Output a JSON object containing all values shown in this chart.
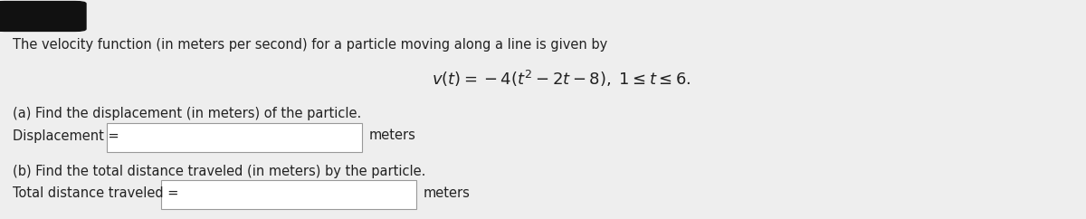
{
  "background_color": "#eeeeee",
  "black_box_color": "#111111",
  "intro_text": "The velocity function (in meters per second) for a particle moving along a line is given by",
  "formula_text": "$v(t) = -4(t^2 - 2t - 8), \\; 1 \\leq t \\leq 6.$",
  "part_a_text": "(a) Find the displacement (in meters) of the particle.",
  "disp_label": "Displacement = ",
  "part_b_text": "(b) Find the total distance traveled (in meters) by the particle.",
  "total_label": "Total distance traveled = ",
  "meters_text": "meters",
  "text_fontsize": 10.5,
  "formula_fontsize": 13,
  "box_facecolor": "#ffffff",
  "box_edgecolor": "#999999"
}
